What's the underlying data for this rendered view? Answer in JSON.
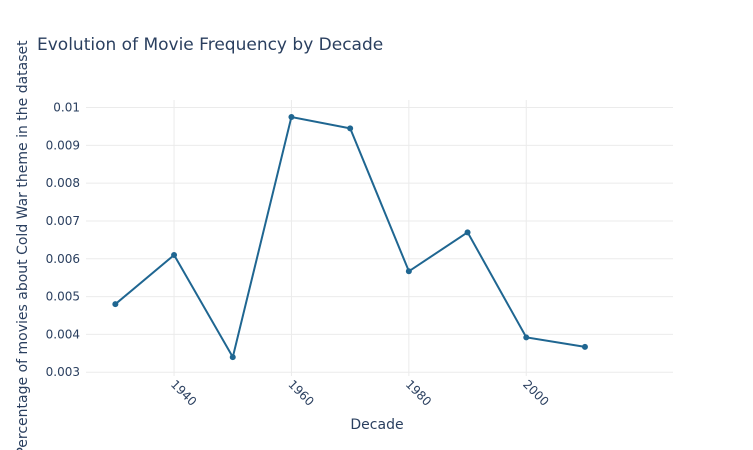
{
  "chart_data": {
    "type": "line",
    "title": "Evolution of Movie Frequency by Decade",
    "xlabel": "Decade",
    "ylabel": "Percentage of movies about Cold War theme in the dataset",
    "x": [
      1930,
      1940,
      1950,
      1960,
      1970,
      1980,
      1990,
      2000,
      2010
    ],
    "series": [
      {
        "values": [
          0.0048,
          0.0061,
          0.0034,
          0.00975,
          0.00945,
          0.00567,
          0.0067,
          0.00392,
          0.00367
        ]
      }
    ],
    "xlim": [
      1925,
      2025
    ],
    "ylim": [
      0.0029,
      0.0102
    ],
    "x_ticks": [
      1940,
      1960,
      1980,
      2000
    ],
    "y_ticks": [
      0.003,
      0.004,
      0.005,
      0.006,
      0.007,
      0.008,
      0.009,
      0.01
    ],
    "y_tick_labels": [
      "0.003",
      "0.004",
      "0.005",
      "0.006",
      "0.007",
      "0.008",
      "0.009",
      "0.01"
    ],
    "grid": true,
    "legend": "none",
    "line_color": "#1f6691"
  }
}
